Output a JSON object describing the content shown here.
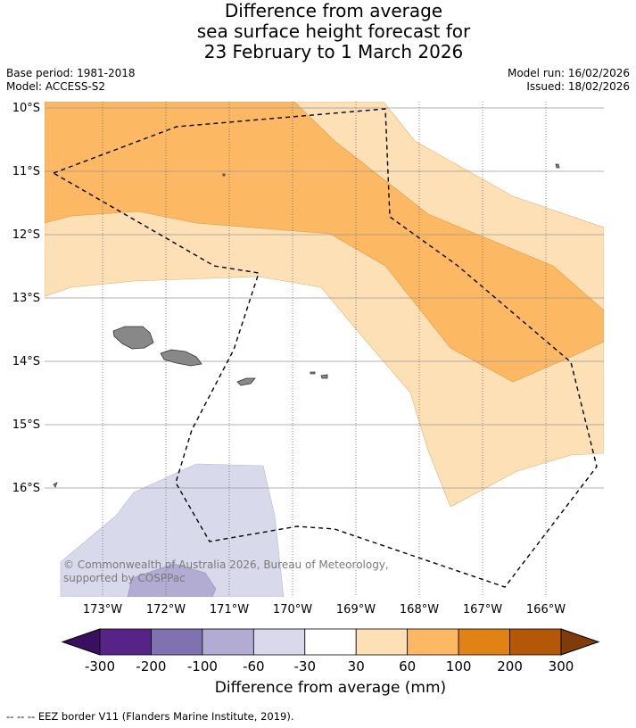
{
  "title": {
    "line1": "Difference from average",
    "line2": "sea surface height forecast for",
    "line3": "23 February to 1 March 2026"
  },
  "meta": {
    "base_period": "Base period: 1981-2018",
    "model": "Model: ACCESS-S2",
    "model_run": "Model run: 16/02/2026",
    "issued": "Issued: 18/02/2026"
  },
  "map": {
    "lat_labels": [
      "10°S",
      "11°S",
      "12°S",
      "13°S",
      "14°S",
      "15°S",
      "16°S"
    ],
    "lon_labels": [
      "173°W",
      "172°W",
      "171°W",
      "170°W",
      "169°W",
      "168°W",
      "167°W",
      "166°W"
    ],
    "copyright": "© Commonwealth of Australia 2026, Bureau of Meteorology, supported by COSPPac",
    "legend_note": "-- -- -- EEZ border V11 (Flanders Marine Institute, 2019)."
  },
  "colorbar": {
    "label": "Difference from average (mm)",
    "ticks": [
      "-300",
      "-200",
      "-100",
      "-60",
      "-30",
      "30",
      "60",
      "100",
      "200",
      "300"
    ],
    "under_color": "#3b0f5f",
    "over_color": "#7f3b08",
    "colors": [
      "#562486",
      "#8072b0",
      "#b2abd2",
      "#d8daeb",
      "#ffffff",
      "#fee0b6",
      "#fdb863",
      "#e08214",
      "#b35806"
    ]
  },
  "colors": {
    "land": "#888888",
    "grid": "#999999",
    "eez": "#000000"
  }
}
